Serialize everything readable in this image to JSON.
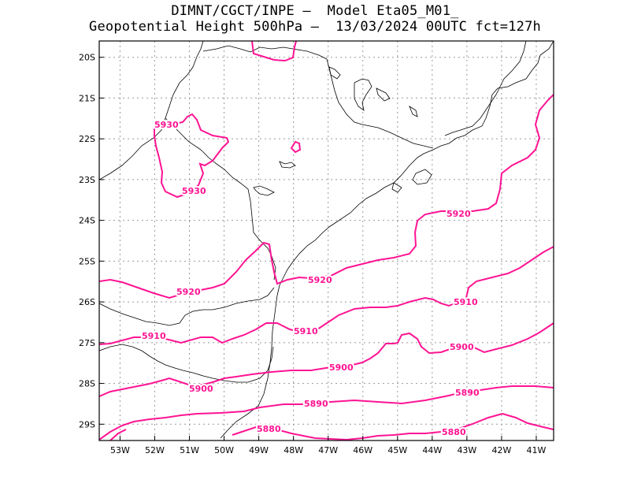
{
  "title": {
    "line1": "DIMNT/CGCT/INPE –  Model Eta05_M01_",
    "line2": "Geopotential Height 500hPa –  13/03/2024 00UTC fct=127h"
  },
  "axes": {
    "x_ticks": [
      "53W",
      "52W",
      "51W",
      "50W",
      "49W",
      "48W",
      "47W",
      "46W",
      "45W",
      "44W",
      "43W",
      "42W",
      "41W"
    ],
    "y_ticks": [
      "20S",
      "21S",
      "22S",
      "23S",
      "24S",
      "25S",
      "26S",
      "27S",
      "28S",
      "29S"
    ]
  },
  "colors": {
    "contour": "#ff1493",
    "grid": "#999999",
    "coast": "#000000"
  },
  "chart_data": {
    "type": "contour",
    "variable": "Geopotential Height 500hPa",
    "lon_range": [
      -53.6,
      -40.5
    ],
    "lat_range": [
      -29.4,
      -19.6
    ],
    "grid": true,
    "contours": [
      {
        "level": 5930,
        "label": "5930"
      },
      {
        "level": 5920,
        "label": "5920"
      },
      {
        "level": 5910,
        "label": "5910"
      },
      {
        "level": 5900,
        "label": "5900"
      },
      {
        "level": 5890,
        "label": "5890"
      },
      {
        "level": 5880,
        "label": "5880"
      }
    ]
  }
}
